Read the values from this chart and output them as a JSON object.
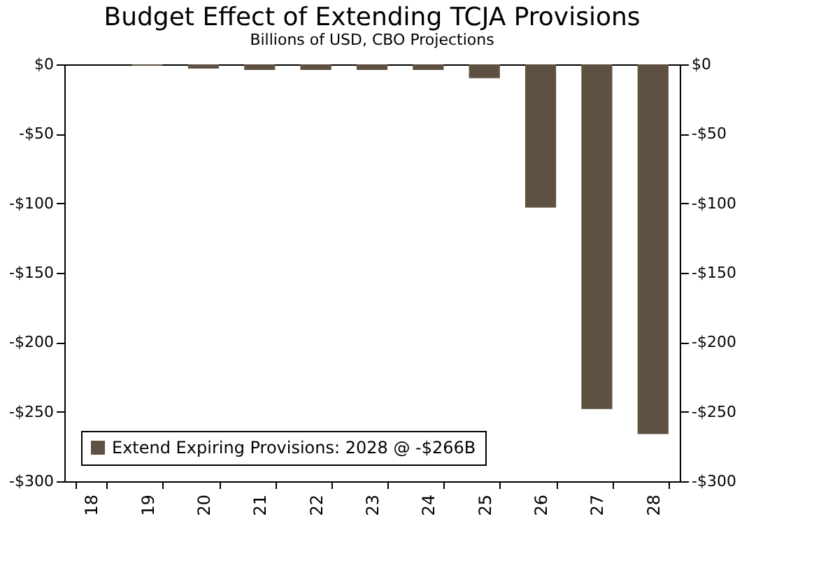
{
  "chart_data": {
    "type": "bar",
    "title": "Budget Effect of Extending TCJA Provisions",
    "subtitle": "Billions of USD, CBO Projections",
    "categories": [
      "18",
      "19",
      "20",
      "21",
      "22",
      "23",
      "24",
      "25",
      "26",
      "27",
      "28"
    ],
    "series": [
      {
        "name": "Extend Expiring Provisions: 2028 @ -$266B",
        "color": "#5e5142",
        "values": [
          0,
          -1,
          -3,
          -4,
          -4,
          -4,
          -4,
          -10,
          -103,
          -248,
          -266
        ]
      }
    ],
    "ylim": [
      -300,
      0
    ],
    "yticks": [
      {
        "value": -300,
        "label": "-$300"
      },
      {
        "value": -250,
        "label": "-$250"
      },
      {
        "value": -200,
        "label": "-$200"
      },
      {
        "value": -150,
        "label": "-$150"
      },
      {
        "value": -100,
        "label": "-$100"
      },
      {
        "value": -50,
        "label": "-$50"
      },
      {
        "value": 0,
        "label": "$0"
      }
    ],
    "y2lim": [
      -300,
      0
    ],
    "y2ticks": [
      {
        "value": -300,
        "label": "-$300"
      },
      {
        "value": -250,
        "label": "-$250"
      },
      {
        "value": -200,
        "label": "-$200"
      },
      {
        "value": -150,
        "label": "-$150"
      },
      {
        "value": -100,
        "label": "-$100"
      },
      {
        "value": -50,
        "label": "-$50"
      },
      {
        "value": 0,
        "label": "$0"
      }
    ],
    "grid": false,
    "legend": "bottom left"
  }
}
